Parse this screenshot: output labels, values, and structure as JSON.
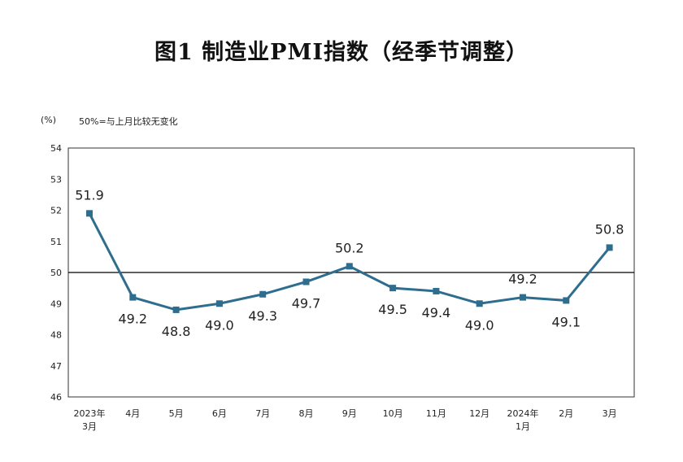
{
  "title": "图1  制造业PMI指数（经季节调整）",
  "unit_label": "(%)",
  "note": "50%=与上月比较无变化",
  "chart_data": {
    "type": "line",
    "title": "图1  制造业PMI指数（经季节调整）",
    "ylabel": "(%)",
    "ylim": [
      46,
      54
    ],
    "yticks": [
      46,
      47,
      48,
      49,
      50,
      51,
      52,
      53,
      54
    ],
    "reference_line": 50,
    "grid": false,
    "line_color": "#2e6d8e",
    "categories": [
      [
        "2023年",
        "3月"
      ],
      [
        "4月"
      ],
      [
        "5月"
      ],
      [
        "6月"
      ],
      [
        "7月"
      ],
      [
        "8月"
      ],
      [
        "9月"
      ],
      [
        "10月"
      ],
      [
        "11月"
      ],
      [
        "12月"
      ],
      [
        "2024年",
        "1月"
      ],
      [
        "2月"
      ],
      [
        "3月"
      ]
    ],
    "values": [
      51.9,
      49.2,
      48.8,
      49.0,
      49.3,
      49.7,
      50.2,
      49.5,
      49.4,
      49.0,
      49.2,
      49.1,
      50.8
    ],
    "data_labels": [
      "51.9",
      "49.2",
      "48.8",
      "49.0",
      "49.3",
      "49.7",
      "50.2",
      "49.5",
      "49.4",
      "49.0",
      "49.2",
      "49.1",
      "50.8"
    ]
  }
}
